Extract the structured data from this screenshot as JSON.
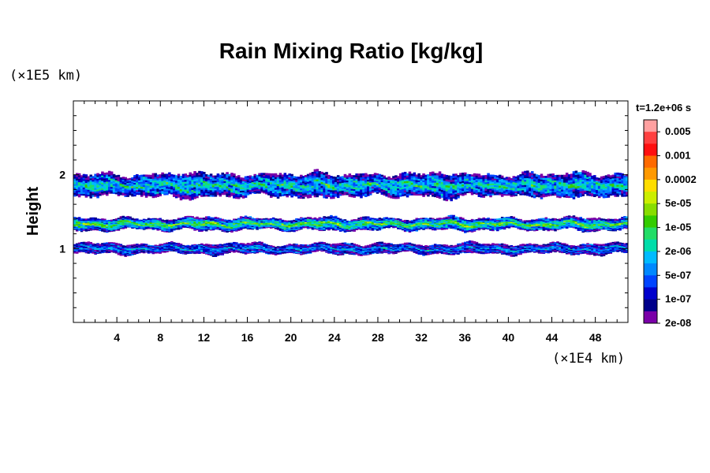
{
  "chart_data": {
    "type": "heatmap",
    "title": "Rain Mixing Ratio [kg/kg]",
    "ylabel": "Height",
    "y_unit": "(×1E5 km)",
    "x_unit": "(×1E4 km)",
    "time_label": "t=1.2e+06 s",
    "x_ticks": [
      "4",
      "8",
      "12",
      "16",
      "20",
      "24",
      "28",
      "32",
      "36",
      "40",
      "44",
      "48"
    ],
    "x_tick_values": [
      4,
      8,
      12,
      16,
      20,
      24,
      28,
      32,
      36,
      40,
      44,
      48
    ],
    "y_ticks": [
      "1",
      "2"
    ],
    "y_tick_values": [
      1,
      2
    ],
    "xlim": [
      0,
      51
    ],
    "ylim": [
      0,
      3
    ],
    "colorbar": {
      "labels": [
        "0.005",
        "0.001",
        "0.0002",
        "5e-05",
        "1e-05",
        "2e-06",
        "5e-07",
        "1e-07",
        "2e-08"
      ],
      "colors": [
        "#ffa0a0",
        "#ff4040",
        "#ff1010",
        "#ff6a00",
        "#ff9900",
        "#ffdd00",
        "#ccee00",
        "#88dd00",
        "#33cc00",
        "#22dd66",
        "#00ddaa",
        "#00bbff",
        "#0088ff",
        "#0044ff",
        "#0000cc",
        "#00008a",
        "#7a00a8"
      ]
    },
    "layers": [
      {
        "y_bottom": 0.93,
        "y_top": 1.07,
        "core_level": 12
      },
      {
        "y_bottom": 1.25,
        "y_top": 1.42,
        "core_level": 8
      },
      {
        "y_bottom": 1.7,
        "y_top": 2.02,
        "core_level": 10
      }
    ]
  }
}
